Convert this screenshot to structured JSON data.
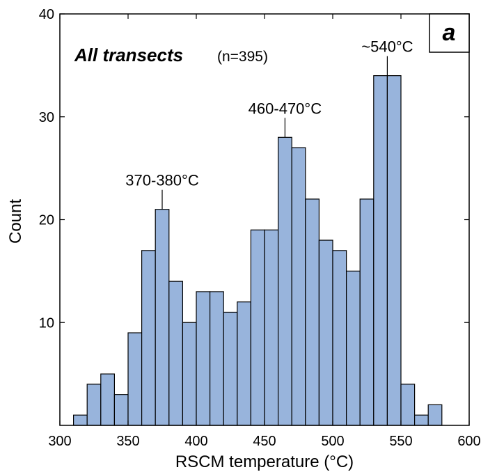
{
  "chart_data": {
    "type": "bar",
    "title": "All transects",
    "subtitle": "(n=395)",
    "panel_label": "a",
    "xlabel": "RSCM temperature (°C)",
    "ylabel": "Count",
    "xlim": [
      300,
      600
    ],
    "ylim": [
      0,
      40
    ],
    "xticks": [
      300,
      350,
      400,
      450,
      500,
      550,
      600
    ],
    "yticks": [
      10,
      20,
      30,
      40
    ],
    "grid": false,
    "bar_color": "#98b4dc",
    "bin_width": 10,
    "bins": [
      {
        "x0": 310,
        "count": 1
      },
      {
        "x0": 320,
        "count": 4
      },
      {
        "x0": 330,
        "count": 5
      },
      {
        "x0": 340,
        "count": 3
      },
      {
        "x0": 350,
        "count": 9
      },
      {
        "x0": 360,
        "count": 17
      },
      {
        "x0": 370,
        "count": 21
      },
      {
        "x0": 380,
        "count": 14
      },
      {
        "x0": 390,
        "count": 10
      },
      {
        "x0": 400,
        "count": 13
      },
      {
        "x0": 410,
        "count": 13
      },
      {
        "x0": 420,
        "count": 11
      },
      {
        "x0": 430,
        "count": 12
      },
      {
        "x0": 440,
        "count": 19
      },
      {
        "x0": 450,
        "count": 19
      },
      {
        "x0": 460,
        "count": 28
      },
      {
        "x0": 470,
        "count": 27
      },
      {
        "x0": 480,
        "count": 22
      },
      {
        "x0": 490,
        "count": 18
      },
      {
        "x0": 500,
        "count": 17
      },
      {
        "x0": 510,
        "count": 15
      },
      {
        "x0": 520,
        "count": 22
      },
      {
        "x0": 530,
        "count": 34
      },
      {
        "x0": 540,
        "count": 34
      },
      {
        "x0": 550,
        "count": 4
      },
      {
        "x0": 560,
        "count": 1
      },
      {
        "x0": 570,
        "count": 2
      }
    ],
    "annotations": [
      {
        "text": "370-380°C",
        "x": 375,
        "y": 21
      },
      {
        "text": "460-470°C",
        "x": 465,
        "y": 28
      },
      {
        "text": "~540°C",
        "x": 540,
        "y": 34
      }
    ]
  }
}
